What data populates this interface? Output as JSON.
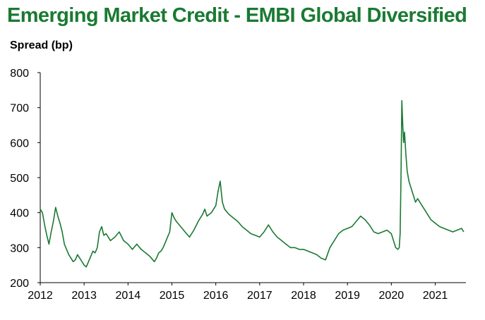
{
  "colors": {
    "title": "#1a7a32",
    "line": "#1a7a32",
    "axis": "#000000"
  },
  "chart_data": {
    "type": "line",
    "title": "Emerging Market Credit - EMBI Global Diversified",
    "subtitle": "Spread (bp)",
    "xlabel": "",
    "ylabel": "",
    "ylim": [
      200,
      800
    ],
    "xlim": [
      2012.0,
      2021.7
    ],
    "yticks": [
      200,
      300,
      400,
      500,
      600,
      700,
      800
    ],
    "xticks": [
      2012,
      2013,
      2014,
      2015,
      2016,
      2017,
      2018,
      2019,
      2020,
      2021
    ],
    "grid": false,
    "legend": "none",
    "series": [
      {
        "x": [
          2012.0,
          2012.05,
          2012.1,
          2012.15,
          2012.2,
          2012.25,
          2012.3,
          2012.35,
          2012.4,
          2012.45,
          2012.5,
          2012.55,
          2012.6,
          2012.65,
          2012.7,
          2012.75,
          2012.8,
          2012.85,
          2012.9,
          2012.95,
          2013.0,
          2013.05,
          2013.1,
          2013.15,
          2013.2,
          2013.25,
          2013.3,
          2013.35,
          2013.4,
          2013.45,
          2013.5,
          2013.55,
          2013.6,
          2013.7,
          2013.8,
          2013.9,
          2014.0,
          2014.1,
          2014.2,
          2014.3,
          2014.4,
          2014.5,
          2014.6,
          2014.65,
          2014.7,
          2014.75,
          2014.8,
          2014.85,
          2014.9,
          2014.95,
          2015.0,
          2015.05,
          2015.1,
          2015.2,
          2015.3,
          2015.4,
          2015.5,
          2015.6,
          2015.7,
          2015.75,
          2015.8,
          2015.9,
          2016.0,
          2016.05,
          2016.1,
          2016.15,
          2016.2,
          2016.3,
          2016.4,
          2016.5,
          2016.6,
          2016.7,
          2016.8,
          2016.9,
          2017.0,
          2017.1,
          2017.2,
          2017.3,
          2017.4,
          2017.5,
          2017.6,
          2017.7,
          2017.8,
          2017.9,
          2018.0,
          2018.1,
          2018.2,
          2018.3,
          2018.4,
          2018.5,
          2018.6,
          2018.7,
          2018.8,
          2018.9,
          2019.0,
          2019.1,
          2019.2,
          2019.3,
          2019.4,
          2019.5,
          2019.6,
          2019.7,
          2019.8,
          2019.9,
          2020.0,
          2020.1,
          2020.15,
          2020.18,
          2020.2,
          2020.22,
          2020.24,
          2020.26,
          2020.28,
          2020.3,
          2020.33,
          2020.36,
          2020.4,
          2020.45,
          2020.5,
          2020.55,
          2020.6,
          2020.7,
          2020.8,
          2020.9,
          2021.0,
          2021.1,
          2021.2,
          2021.3,
          2021.4,
          2021.5,
          2021.6,
          2021.65
        ],
        "values": [
          410,
          400,
          365,
          335,
          310,
          345,
          375,
          415,
          390,
          370,
          345,
          310,
          295,
          280,
          270,
          260,
          265,
          280,
          270,
          260,
          250,
          245,
          260,
          275,
          290,
          285,
          300,
          345,
          360,
          335,
          340,
          330,
          320,
          330,
          345,
          320,
          310,
          295,
          310,
          295,
          285,
          275,
          260,
          270,
          285,
          290,
          300,
          315,
          330,
          345,
          400,
          385,
          375,
          360,
          345,
          330,
          350,
          375,
          395,
          410,
          390,
          400,
          420,
          460,
          490,
          430,
          410,
          395,
          385,
          375,
          360,
          350,
          340,
          335,
          330,
          345,
          365,
          345,
          330,
          320,
          310,
          300,
          300,
          295,
          295,
          290,
          285,
          280,
          270,
          265,
          300,
          320,
          340,
          350,
          355,
          360,
          375,
          390,
          380,
          365,
          345,
          340,
          345,
          350,
          340,
          300,
          295,
          300,
          340,
          500,
          720,
          650,
          600,
          630,
          570,
          520,
          490,
          470,
          450,
          430,
          440,
          420,
          400,
          380,
          370,
          360,
          355,
          350,
          345,
          350,
          355,
          345
        ]
      }
    ]
  }
}
